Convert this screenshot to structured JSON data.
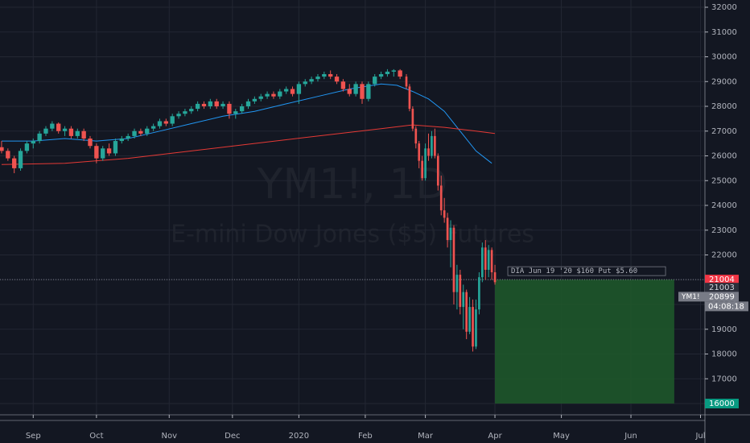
{
  "chart_data": {
    "type": "candlestick",
    "title": "YM1!, 1D",
    "subtitle": "E-mini Dow Jones ($5) Futures",
    "up_color": "#26a69a",
    "down_color": "#ef5350",
    "x": [
      0,
      2,
      4,
      6,
      8,
      10,
      12,
      14,
      16,
      18,
      20,
      22,
      24,
      26,
      28,
      30,
      32,
      34,
      36,
      38,
      40,
      42,
      44,
      46,
      48,
      50,
      52,
      54,
      56,
      58,
      60,
      62,
      64,
      66,
      68,
      70,
      72,
      74,
      76,
      78,
      80,
      82,
      84,
      86,
      88,
      90,
      92,
      94,
      96,
      98,
      100,
      102,
      104,
      106,
      108,
      110,
      112,
      114,
      116,
      118,
      120,
      122,
      124,
      126,
      128,
      129,
      130,
      131,
      132,
      133,
      134,
      135,
      136,
      137,
      138,
      139,
      140,
      141,
      142,
      143,
      144,
      145,
      146,
      147,
      148,
      149,
      150,
      151,
      152,
      153,
      154,
      155,
      156
    ],
    "open": [
      26350,
      26200,
      25900,
      25500,
      26200,
      26500,
      26600,
      26900,
      27100,
      27300,
      27000,
      27100,
      26800,
      27000,
      26700,
      26400,
      25900,
      26300,
      26100,
      26600,
      26700,
      26800,
      27000,
      26900,
      27100,
      27200,
      27400,
      27300,
      27600,
      27700,
      27800,
      27900,
      28100,
      28000,
      28200,
      28000,
      28100,
      27700,
      27800,
      28000,
      28200,
      28300,
      28400,
      28500,
      28400,
      28600,
      28700,
      28500,
      28900,
      29000,
      29100,
      29200,
      29300,
      29200,
      29000,
      28700,
      28500,
      28900,
      28300,
      28900,
      29200,
      29300,
      29400,
      29450,
      29200,
      28800,
      27900,
      27100,
      26500,
      25800,
      25100,
      26300,
      26000,
      26800,
      26000,
      24800,
      23800,
      23500,
      22600,
      23100,
      20500,
      21200,
      19900,
      20500,
      18900,
      19900,
      18300,
      19800,
      21100,
      22300,
      21400,
      22200,
      21300
    ],
    "high": [
      26600,
      26300,
      26000,
      26300,
      26600,
      26700,
      27000,
      27200,
      27400,
      27350,
      27200,
      27200,
      27100,
      27100,
      26800,
      26500,
      26400,
      26500,
      26700,
      26800,
      26900,
      27100,
      27100,
      27200,
      27300,
      27500,
      27500,
      27700,
      27800,
      27900,
      28000,
      28200,
      28200,
      28300,
      28300,
      28200,
      28200,
      27900,
      28100,
      28300,
      28400,
      28500,
      28600,
      28600,
      28700,
      28800,
      28800,
      29000,
      29100,
      29200,
      29300,
      29400,
      29450,
      29300,
      29100,
      28900,
      29000,
      29000,
      29000,
      29300,
      29400,
      29500,
      29500,
      29500,
      29300,
      28900,
      28000,
      27200,
      26600,
      26000,
      26500,
      26900,
      27000,
      27100,
      26100,
      25200,
      24300,
      23700,
      23400,
      23200,
      21600,
      21400,
      20800,
      20600,
      20300,
      20200,
      20200,
      21300,
      22500,
      22600,
      22400,
      22300,
      21600
    ],
    "low": [
      26100,
      25800,
      25300,
      25400,
      26100,
      26300,
      26500,
      26800,
      27000,
      26900,
      26800,
      26700,
      26700,
      26600,
      26300,
      25700,
      25800,
      26000,
      26000,
      26500,
      26600,
      26700,
      26800,
      26800,
      27000,
      27100,
      27200,
      27200,
      27500,
      27600,
      27700,
      27800,
      27900,
      27900,
      27900,
      27900,
      27500,
      27500,
      27700,
      27900,
      28100,
      28200,
      28300,
      28300,
      28300,
      28500,
      28400,
      28100,
      28800,
      28900,
      29000,
      29100,
      29100,
      28900,
      28600,
      28400,
      28400,
      28100,
      28200,
      28800,
      29100,
      29200,
      29200,
      29100,
      28700,
      27800,
      27000,
      26300,
      25500,
      25000,
      25000,
      25800,
      25900,
      25900,
      24600,
      23600,
      23300,
      22300,
      21500,
      20000,
      19800,
      19600,
      19000,
      18600,
      18800,
      18100,
      18200,
      19600,
      20900,
      21000,
      21100,
      21000,
      20800
    ],
    "close": [
      26200,
      25900,
      25500,
      26200,
      26500,
      26600,
      26900,
      27100,
      27300,
      27000,
      27100,
      26800,
      27000,
      26700,
      26400,
      25900,
      26300,
      26100,
      26600,
      26700,
      26800,
      27000,
      26900,
      27100,
      27200,
      27400,
      27300,
      27600,
      27700,
      27800,
      27900,
      28100,
      28000,
      28200,
      28000,
      28100,
      27700,
      27800,
      28000,
      28200,
      28300,
      28400,
      28500,
      28400,
      28600,
      28700,
      28500,
      28900,
      29000,
      29100,
      29200,
      29300,
      29200,
      29000,
      28700,
      28500,
      28900,
      28300,
      28900,
      29200,
      29300,
      29400,
      29450,
      29200,
      28800,
      27900,
      27100,
      26500,
      25800,
      25100,
      26300,
      26000,
      26800,
      26000,
      24800,
      23800,
      23500,
      22600,
      23100,
      20500,
      21200,
      19900,
      20500,
      18900,
      19900,
      18300,
      19800,
      21100,
      22300,
      21400,
      22200,
      21300,
      20899
    ],
    "lines": [
      {
        "color": "#2196f3",
        "x": [
          0,
          10,
          20,
          30,
          40,
          50,
          60,
          70,
          80,
          90,
          100,
          110,
          120,
          125,
          130,
          135,
          140,
          145,
          150,
          155
        ],
        "values": [
          26600,
          26600,
          26700,
          26600,
          26700,
          27000,
          27300,
          27600,
          27800,
          28100,
          28400,
          28700,
          28900,
          28850,
          28600,
          28300,
          27800,
          27000,
          26200,
          25700
        ]
      },
      {
        "color": "#e53935",
        "x": [
          0,
          20,
          40,
          60,
          80,
          100,
          120,
          130,
          140,
          150,
          156
        ],
        "values": [
          25650,
          25700,
          25900,
          26200,
          26500,
          26800,
          27100,
          27250,
          27150,
          27000,
          26900
        ]
      }
    ],
    "xlim": [
      -0.5,
      222.4
    ],
    "xticks": [
      {
        "value": 10,
        "label": "Sep"
      },
      {
        "value": 30,
        "label": "Oct"
      },
      {
        "value": 53,
        "label": "Nov"
      },
      {
        "value": 73,
        "label": "Dec"
      },
      {
        "value": 94,
        "label": "2020"
      },
      {
        "value": 115,
        "label": "Feb"
      },
      {
        "value": 134,
        "label": "Mar"
      },
      {
        "value": 156,
        "label": "Apr"
      },
      {
        "value": 177,
        "label": "May"
      },
      {
        "value": 199,
        "label": "Jun"
      },
      {
        "value": 221,
        "label": "Jul"
      }
    ],
    "ylim": [
      15545,
      32293
    ],
    "yticks": [
      16000,
      17000,
      18000,
      19000,
      20000,
      21000,
      22000,
      23000,
      24000,
      25000,
      26000,
      27000,
      28000,
      29000,
      30000,
      31000,
      32000
    ],
    "grid": true,
    "position": {
      "label": "DIA Jun 19 '20 $160 Put $5.60",
      "entry": 21004,
      "target": 16000,
      "x": [
        156,
        212.7
      ],
      "color": "#1e5a2a",
      "entry_color": "#f23645",
      "target_color": "#089981"
    },
    "marker_price": 21003,
    "symbol": "YM1!",
    "last_price": 20899,
    "countdown": "04:08:18"
  }
}
